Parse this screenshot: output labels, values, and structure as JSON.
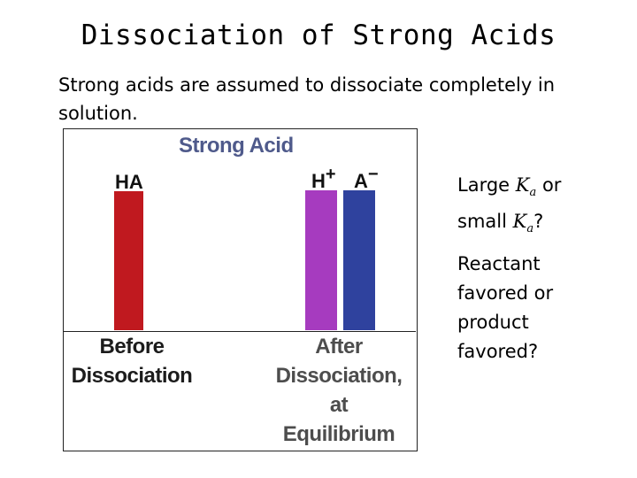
{
  "slide": {
    "title": "Dissociation of Strong Acids",
    "intro": "Strong acids are assumed to dissociate completely in solution."
  },
  "figure": {
    "title": "Strong Acid",
    "species": {
      "ha": "HA",
      "h_base": "H",
      "h_charge": "+",
      "a_base": "A",
      "a_charge": "−"
    },
    "bars": {
      "ha_color": "#c0191f",
      "h_color": "#a63bbf",
      "a_color": "#2f429e"
    },
    "stages": {
      "before_line1": "Before",
      "before_line2": "Dissociation",
      "after_line1": "After",
      "after_line2": "Dissociation,",
      "after_line3": "at",
      "after_line4": "Equilibrium"
    }
  },
  "side_questions": {
    "q1_part1": "Large",
    "ka_symbol": "K",
    "ka_subscript": "a",
    "q1_part2": "or",
    "q1_part3": "small",
    "q1_end": "?",
    "q2": "Reactant favored or product favored?"
  }
}
